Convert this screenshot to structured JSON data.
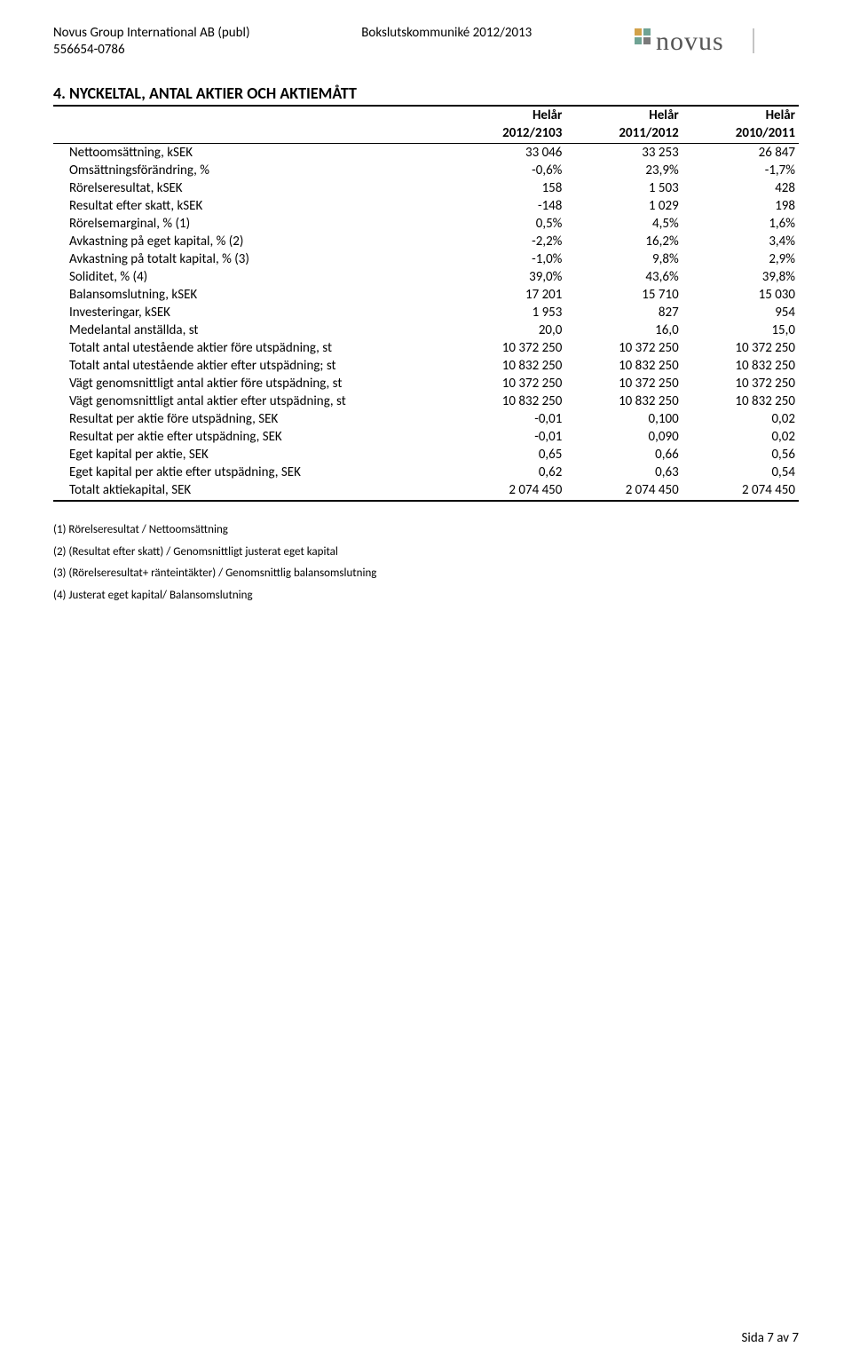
{
  "header": {
    "company": "Novus Group International AB (publ)",
    "orgnr": "556654-0786",
    "doc_title": "Bokslutskommuniké 2012/2013",
    "logo_text": "novus"
  },
  "section_title": "4. NYCKELTAL, ANTAL AKTIER OCH AKTIEMÅTT",
  "columns": {
    "period_label": "Helår",
    "c1": "2012/2103",
    "c2": "2011/2012",
    "c3": "2010/2011"
  },
  "rows": [
    {
      "label": "Nettoomsättning, kSEK",
      "v": [
        "33 046",
        "33 253",
        "26 847"
      ]
    },
    {
      "label": "Omsättningsförändring, %",
      "v": [
        "-0,6%",
        "23,9%",
        "-1,7%"
      ]
    },
    {
      "label": "Rörelseresultat, kSEK",
      "v": [
        "158",
        "1 503",
        "428"
      ]
    },
    {
      "label": "Resultat efter skatt, kSEK",
      "v": [
        "-148",
        "1 029",
        "198"
      ]
    },
    {
      "label": "Rörelsemarginal, % (1)",
      "v": [
        "0,5%",
        "4,5%",
        "1,6%"
      ]
    },
    {
      "label": "Avkastning på eget kapital, % (2)",
      "v": [
        "-2,2%",
        "16,2%",
        "3,4%"
      ]
    },
    {
      "label": "Avkastning på totalt kapital, % (3)",
      "v": [
        "-1,0%",
        "9,8%",
        "2,9%"
      ]
    },
    {
      "label": "Soliditet, % (4)",
      "v": [
        "39,0%",
        "43,6%",
        "39,8%"
      ]
    },
    {
      "label": "Balansomslutning, kSEK",
      "v": [
        "17 201",
        "15 710",
        "15 030"
      ]
    },
    {
      "label": "Investeringar, kSEK",
      "v": [
        "1 953",
        "827",
        "954"
      ]
    },
    {
      "label": "Medelantal anställda, st",
      "v": [
        "20,0",
        "16,0",
        "15,0"
      ]
    },
    {
      "label": "Totalt antal utestående aktier före utspädning, st",
      "v": [
        "10 372 250",
        "10 372 250",
        "10 372 250"
      ]
    },
    {
      "label": "Totalt antal utestående aktier efter utspädning; st",
      "v": [
        "10 832 250",
        "10 832 250",
        "10 832 250"
      ]
    },
    {
      "label": "Vägt genomsnittligt antal aktier före utspädning, st",
      "v": [
        "10 372 250",
        "10 372 250",
        "10 372 250"
      ]
    },
    {
      "label": "Vägt genomsnittligt antal aktier efter utspädning, st",
      "v": [
        "10 832 250",
        "10 832 250",
        "10 832 250"
      ]
    },
    {
      "label": "Resultat per aktie före utspädning, SEK",
      "v": [
        "-0,01",
        "0,100",
        "0,02"
      ]
    },
    {
      "label": "Resultat per aktie efter utspädning, SEK",
      "v": [
        "-0,01",
        "0,090",
        "0,02"
      ]
    },
    {
      "label": "Eget kapital per aktie, SEK",
      "v": [
        "0,65",
        "0,66",
        "0,56"
      ]
    },
    {
      "label": "Eget kapital per aktie efter utspädning, SEK",
      "v": [
        "0,62",
        "0,63",
        "0,54"
      ]
    },
    {
      "label": "Totalt aktiekapital, SEK",
      "v": [
        "2 074 450",
        "2 074 450",
        "2 074 450"
      ]
    }
  ],
  "notes": [
    "(1) Rörelseresultat / Nettoomsättning",
    "(2) (Resultat efter skatt) / Genomsnittligt justerat eget kapital",
    "(3) (Rörelseresultat+ ränteintäkter) / Genomsnittlig balansomslutning",
    "(4) Justerat eget kapital/ Balansomslutning"
  ],
  "pager": "Sida 7 av 7"
}
